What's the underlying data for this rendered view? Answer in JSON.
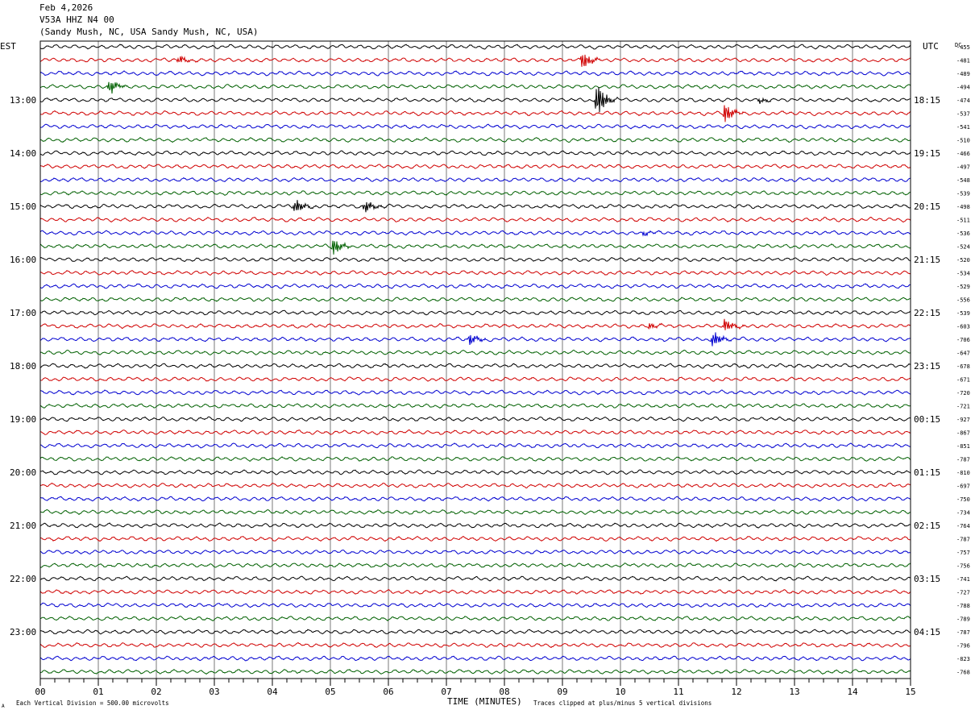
{
  "header": {
    "date": "Feb 4,2026",
    "station": "V53A HHZ N4 00",
    "location": "(Sandy Mush, NC, USA Sandy Mush, NC, USA)"
  },
  "labels": {
    "left_tz": "EST",
    "right_tz": "UTC",
    "dc": "DC",
    "xlabel": "TIME (MINUTES)",
    "scale_note": "Each Vertical Division =  500.00 microvolts",
    "clip_note": "Traces clipped at plus/minus 5 vertical divisions",
    "corner_mark": "A"
  },
  "colors": {
    "cycle": [
      "#000000",
      "#d00000",
      "#0000d0",
      "#006000"
    ],
    "grid": "#7a7a7a",
    "frame": "#000000"
  },
  "chart_data": {
    "type": "line",
    "title": "",
    "xlabel": "TIME (MINUTES)",
    "xlim": [
      0,
      15
    ],
    "x_ticks": [
      "00",
      "01",
      "02",
      "03",
      "04",
      "05",
      "06",
      "07",
      "08",
      "09",
      "10",
      "11",
      "12",
      "13",
      "14",
      "15"
    ],
    "traces_per_hour": 4,
    "trace_count": 48,
    "left_hour_labels": [
      "13:00",
      "14:00",
      "15:00",
      "16:00",
      "17:00",
      "18:00",
      "19:00",
      "20:00",
      "21:00",
      "22:00",
      "23:00"
    ],
    "right_hour_labels": [
      "18:15",
      "19:15",
      "20:15",
      "21:15",
      "22:15",
      "23:15",
      "00:15",
      "01:15",
      "02:15",
      "03:15",
      "04:15"
    ],
    "first_labeled_trace": 4,
    "dc_offsets": [
      "-455",
      "-481",
      "-489",
      "-494",
      "-474",
      "-537",
      "-541",
      "-510",
      "-466",
      "-497",
      "-548",
      "-539",
      "-498",
      "-511",
      "-536",
      "-524",
      "-520",
      "-534",
      "-529",
      "-556",
      "-539",
      "-603",
      "-706",
      "-647",
      "-678",
      "-671",
      "-720",
      "-721",
      "-927",
      "-867",
      "-851",
      "-787",
      "-810",
      "-697",
      "-750",
      "-734",
      "-764",
      "-787",
      "-757",
      "-756",
      "-741",
      "-727",
      "-788",
      "-789",
      "-787",
      "-796",
      "-823",
      "-768"
    ],
    "events": [
      {
        "trace": 1,
        "minute": 2.4,
        "amplitude": 0.4
      },
      {
        "trace": 1,
        "minute": 9.35,
        "amplitude": 1.0
      },
      {
        "trace": 3,
        "minute": 1.2,
        "amplitude": 0.8
      },
      {
        "trace": 4,
        "minute": 9.6,
        "amplitude": 2.0
      },
      {
        "trace": 4,
        "minute": 12.4,
        "amplitude": 0.3
      },
      {
        "trace": 5,
        "minute": 11.8,
        "amplitude": 1.1
      },
      {
        "trace": 12,
        "minute": 4.4,
        "amplitude": 0.8
      },
      {
        "trace": 12,
        "minute": 5.6,
        "amplitude": 0.7
      },
      {
        "trace": 14,
        "minute": 10.4,
        "amplitude": 0.25
      },
      {
        "trace": 15,
        "minute": 5.05,
        "amplitude": 0.9
      },
      {
        "trace": 21,
        "minute": 10.5,
        "amplitude": 0.3
      },
      {
        "trace": 21,
        "minute": 11.8,
        "amplitude": 0.7
      },
      {
        "trace": 22,
        "minute": 7.4,
        "amplitude": 0.6
      },
      {
        "trace": 22,
        "minute": 11.6,
        "amplitude": 0.9
      }
    ],
    "clip_divisions": 5
  }
}
